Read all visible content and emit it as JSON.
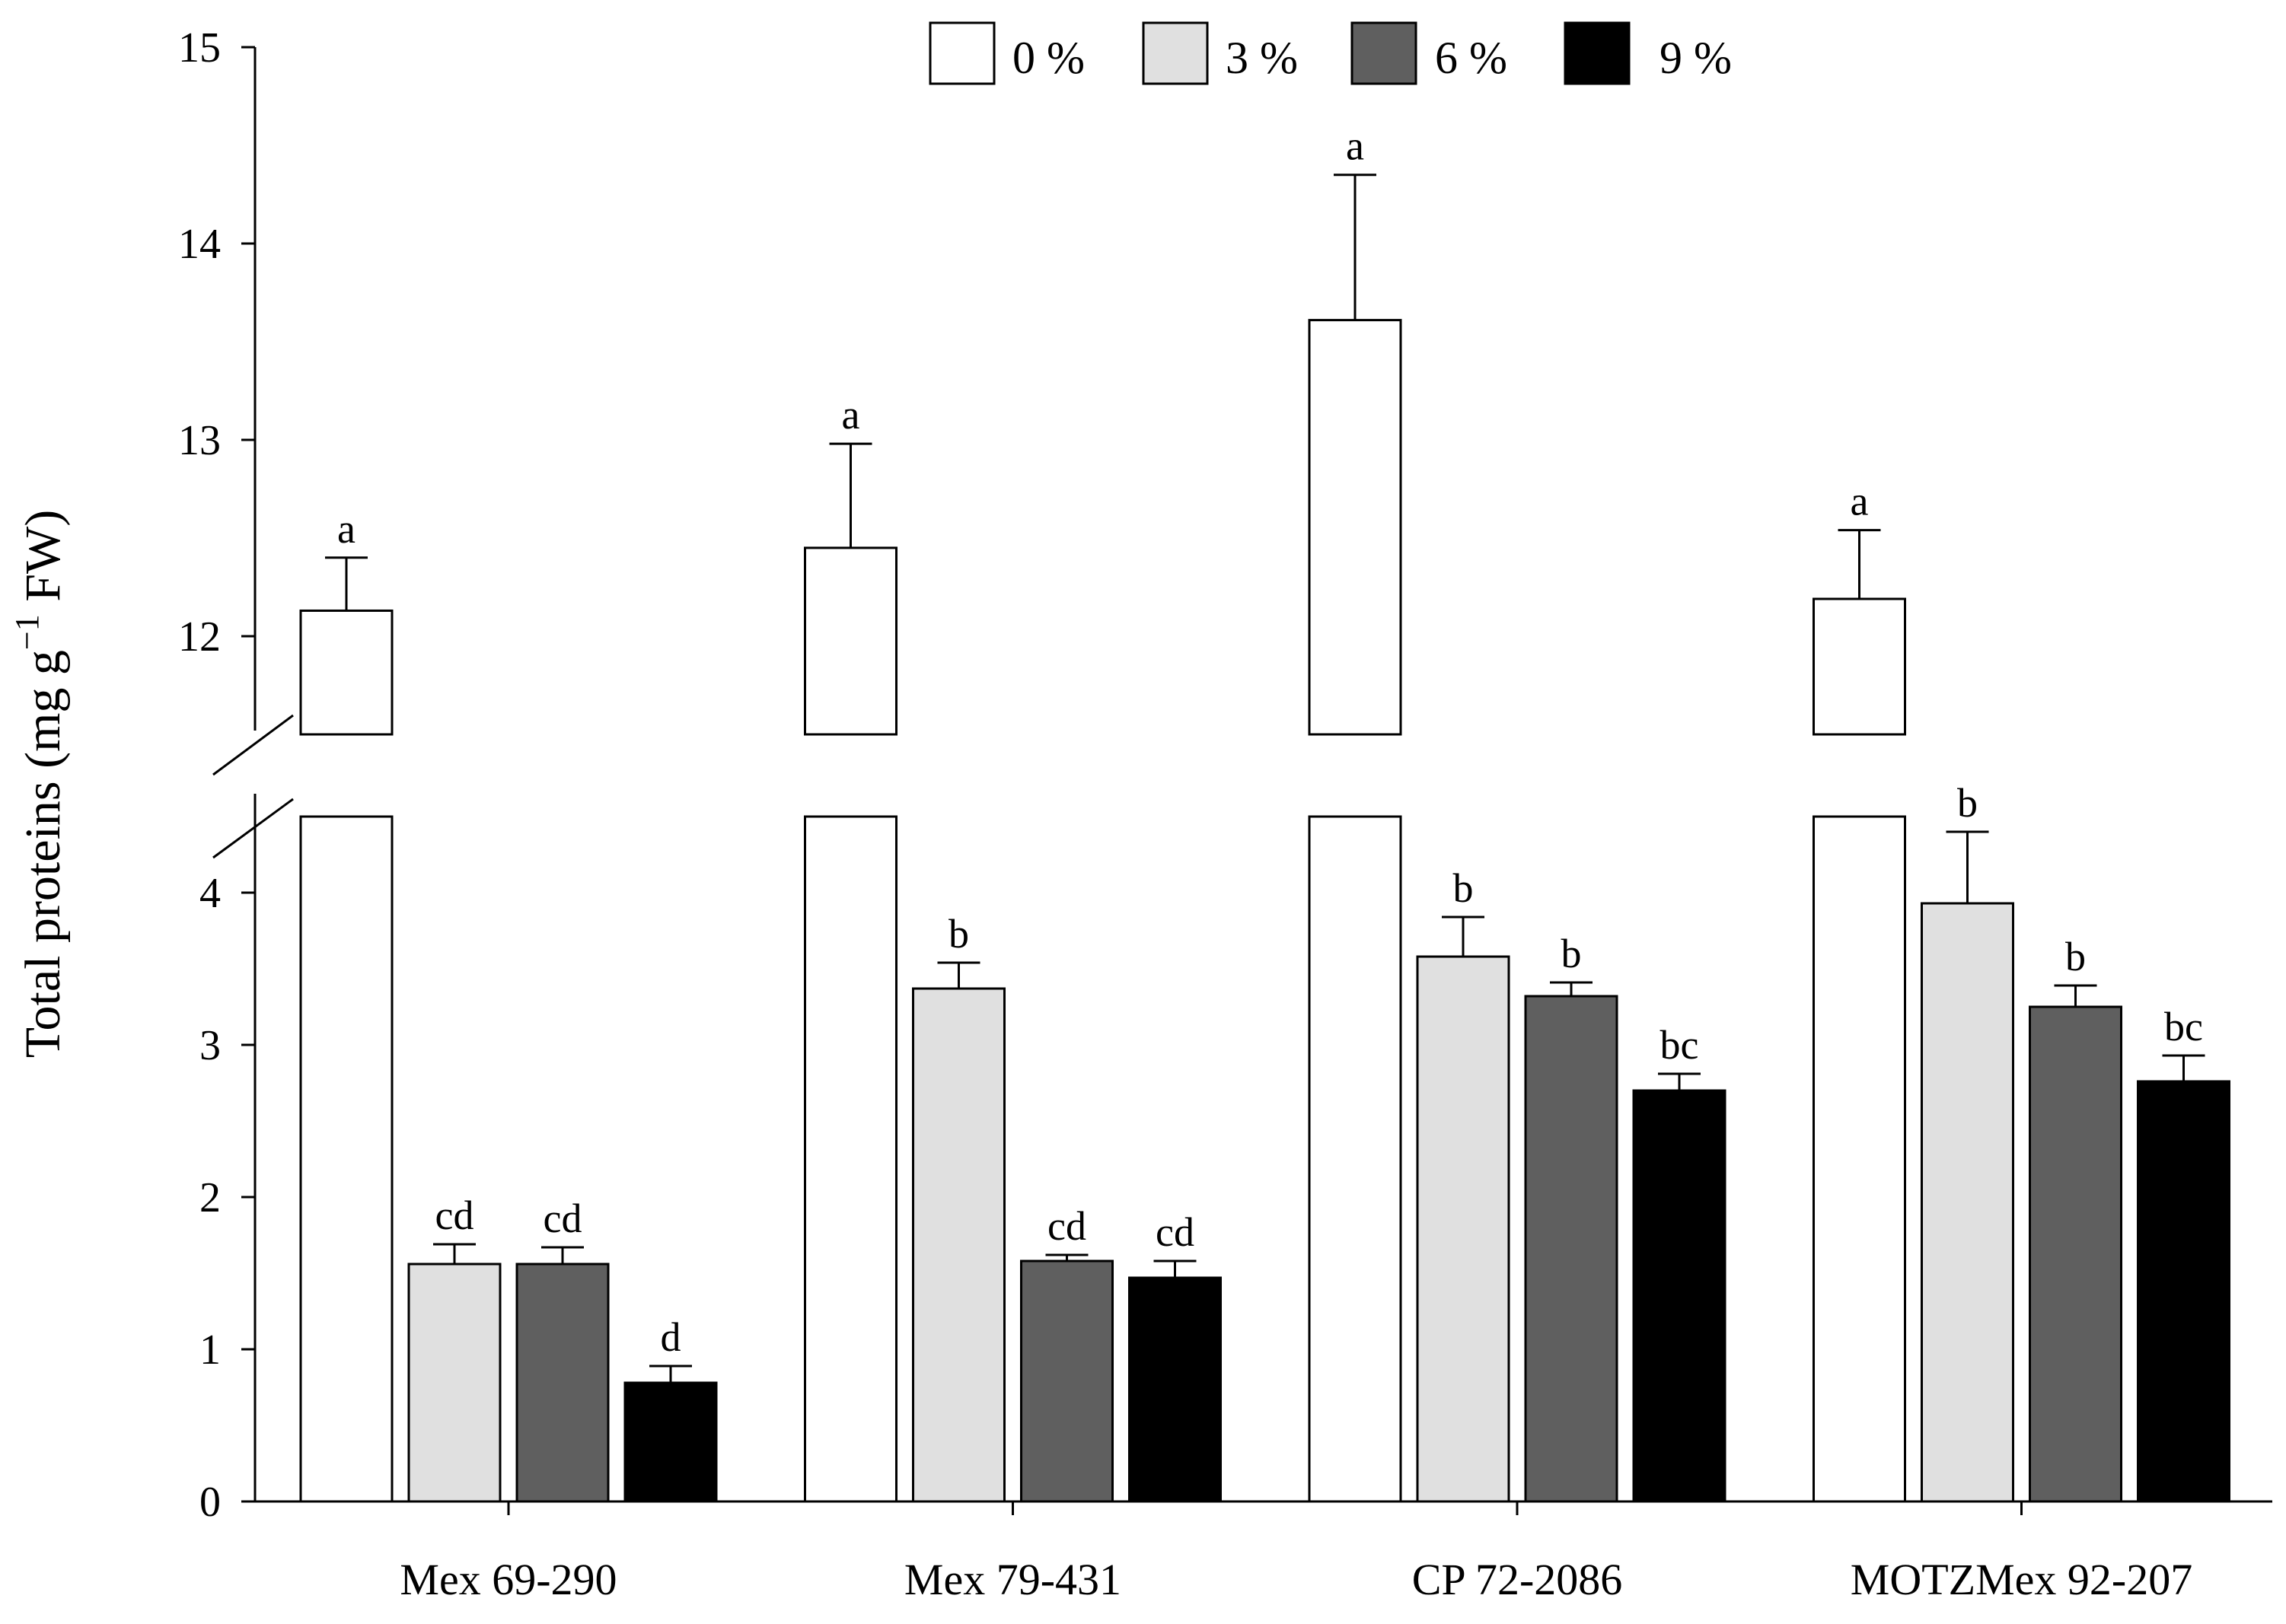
{
  "chart_data": {
    "type": "bar",
    "title": "",
    "xlabel": "",
    "ylabel": {
      "main": "Total proteins (mg g",
      "superscript": "−1",
      "suffix": " FW)"
    },
    "axis_break": {
      "lower_max": 4.5,
      "upper_min": 11.5
    },
    "ylim": [
      0,
      15
    ],
    "lower_ticks": [
      "0",
      "1",
      "2",
      "3",
      "4"
    ],
    "upper_ticks": [
      "12",
      "13",
      "14",
      "15"
    ],
    "categories": [
      "Mex 69-290",
      "Mex 79-431",
      "CP 72-2086",
      "MOTZMex 92-207"
    ],
    "series": [
      {
        "name": "0 %",
        "color": "#ffffff",
        "values": [
          12.13,
          12.45,
          13.61,
          12.19
        ],
        "errors": [
          0.27,
          0.53,
          0.74,
          0.35
        ],
        "letters": [
          "a",
          "a",
          "a",
          "a"
        ]
      },
      {
        "name": "3 %",
        "color": "#e0e0e0",
        "values": [
          1.56,
          3.37,
          3.58,
          3.93
        ],
        "errors": [
          0.13,
          0.17,
          0.26,
          0.47
        ],
        "letters": [
          "cd",
          "b",
          "b",
          "b"
        ]
      },
      {
        "name": "6 %",
        "color": "#5f5f5f",
        "values": [
          1.56,
          1.58,
          3.32,
          3.25
        ],
        "errors": [
          0.11,
          0.04,
          0.09,
          0.14
        ],
        "letters": [
          "cd",
          "cd",
          "b",
          "b"
        ]
      },
      {
        "name": "9 %",
        "color": "#000000",
        "values": [
          0.78,
          1.47,
          2.7,
          2.76
        ],
        "errors": [
          0.11,
          0.11,
          0.11,
          0.17
        ],
        "letters": [
          "d",
          "cd",
          "bc",
          "bc"
        ]
      }
    ],
    "legend": "top-center",
    "grid": false
  }
}
